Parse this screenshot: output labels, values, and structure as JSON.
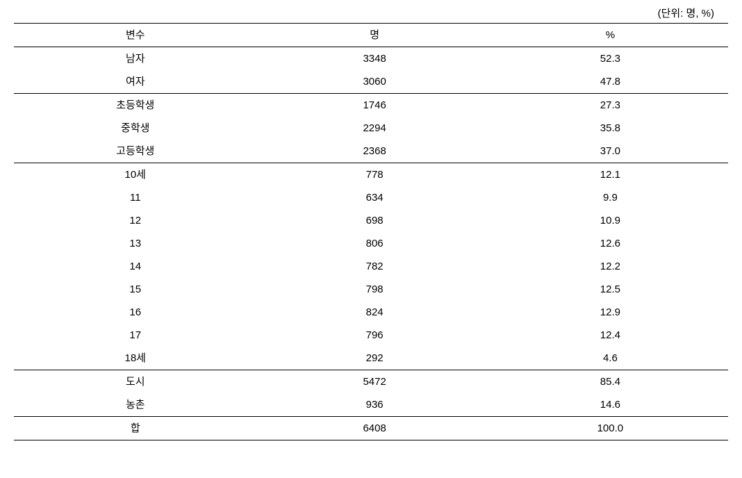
{
  "unit_label": "(단위: 명, %)",
  "headers": {
    "variable": "변수",
    "count": "명",
    "percent": "%"
  },
  "sections": [
    {
      "rows": [
        {
          "label": "남자",
          "count": "3348",
          "percent": "52.3"
        },
        {
          "label": "여자",
          "count": "3060",
          "percent": "47.8"
        }
      ]
    },
    {
      "rows": [
        {
          "label": "초등학생",
          "count": "1746",
          "percent": "27.3"
        },
        {
          "label": "중학생",
          "count": "2294",
          "percent": "35.8"
        },
        {
          "label": "고등학생",
          "count": "2368",
          "percent": "37.0"
        }
      ]
    },
    {
      "rows": [
        {
          "label": "10세",
          "count": "778",
          "percent": "12.1"
        },
        {
          "label": "11",
          "count": "634",
          "percent": "9.9"
        },
        {
          "label": "12",
          "count": "698",
          "percent": "10.9"
        },
        {
          "label": "13",
          "count": "806",
          "percent": "12.6"
        },
        {
          "label": "14",
          "count": "782",
          "percent": "12.2"
        },
        {
          "label": "15",
          "count": "798",
          "percent": "12.5"
        },
        {
          "label": "16",
          "count": "824",
          "percent": "12.9"
        },
        {
          "label": "17",
          "count": "796",
          "percent": "12.4"
        },
        {
          "label": "18세",
          "count": "292",
          "percent": "4.6"
        }
      ]
    },
    {
      "rows": [
        {
          "label": "도시",
          "count": "5472",
          "percent": "85.4"
        },
        {
          "label": "농촌",
          "count": "936",
          "percent": "14.6"
        }
      ]
    },
    {
      "rows": [
        {
          "label": "합",
          "count": "6408",
          "percent": "100.0"
        }
      ]
    }
  ],
  "styling": {
    "background_color": "#ffffff",
    "text_color": "#000000",
    "border_color": "#000000",
    "font_size": 15,
    "row_padding": 6,
    "column_widths": [
      "34%",
      "33%",
      "33%"
    ]
  }
}
